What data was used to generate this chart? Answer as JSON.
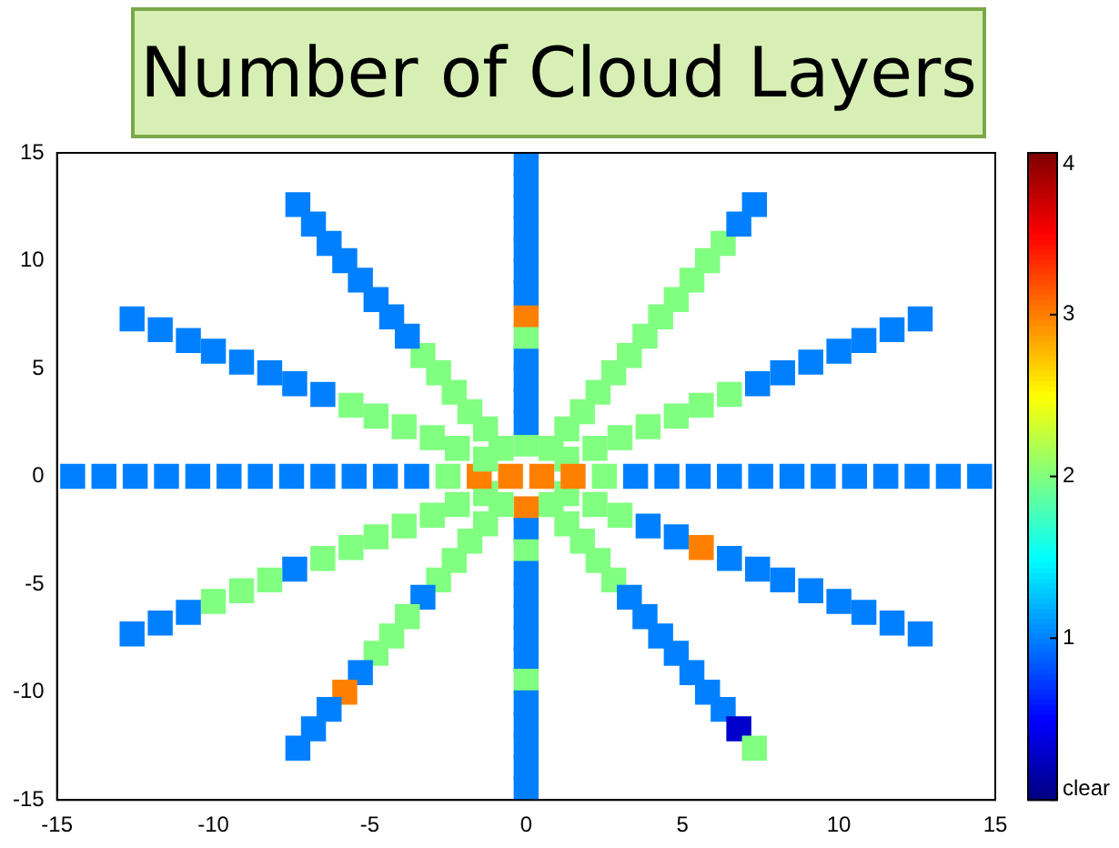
{
  "chart_data": {
    "type": "scatter",
    "title": "Number of Cloud Layers",
    "xlim": [
      -15,
      15
    ],
    "xticks": [
      -15,
      -10,
      -5,
      0,
      5,
      10,
      15
    ],
    "ylim": [
      -15,
      15
    ],
    "yticks": [
      -15,
      -10,
      -5,
      0,
      5,
      10,
      15
    ],
    "clim": [
      0,
      4
    ],
    "cticks": [
      {
        "value": 0,
        "label": "clear"
      },
      1,
      2,
      3,
      4
    ],
    "grid": false,
    "legend": false,
    "marker": "square",
    "series": [
      {
        "x": [
          0.5,
          1.5,
          2.5,
          3.5,
          4.5,
          5.5,
          6.5,
          7.5,
          8.5,
          9.5,
          10.5,
          11.5,
          12.5,
          13.5,
          14.5
        ],
        "values": [
          0,
          0,
          0,
          0,
          0,
          0,
          0,
          0,
          0,
          0,
          0,
          0,
          0,
          0,
          0
        ],
        "cvalues": [
          3,
          3,
          2,
          1,
          1,
          1,
          1,
          1,
          1,
          1,
          1,
          1,
          1,
          1,
          1
        ],
        "colors": [
          "#ff8000",
          "#ff8000",
          "#80ff80",
          "#0080ff",
          "#0080ff",
          "#0080ff",
          "#0080ff",
          "#0080ff",
          "#0080ff",
          "#0080ff",
          "#0080ff",
          "#0080ff",
          "#0080ff",
          "#0080ff",
          "#0080ff"
        ]
      },
      {
        "x": [
          1.3,
          2.2,
          3.0,
          3.9,
          4.8,
          5.6,
          6.5,
          7.4,
          8.2,
          9.1,
          10.0,
          10.8,
          11.7,
          12.6
        ],
        "values": [
          0.8,
          1.3,
          1.8,
          2.3,
          2.8,
          3.3,
          3.8,
          4.3,
          4.8,
          5.3,
          5.8,
          6.3,
          6.8,
          7.3
        ],
        "cvalues": [
          2,
          2,
          2,
          2,
          2,
          2,
          2,
          1,
          1,
          1,
          1,
          1,
          1,
          1
        ],
        "colors": [
          "#80ff80",
          "#80ff80",
          "#80ff80",
          "#80ff80",
          "#80ff80",
          "#80ff80",
          "#80ff80",
          "#0080ff",
          "#0080ff",
          "#0080ff",
          "#0080ff",
          "#0080ff",
          "#0080ff",
          "#0080ff"
        ]
      },
      {
        "x": [
          0.8,
          1.3,
          1.8,
          2.3,
          2.8,
          3.3,
          3.8,
          4.3,
          4.8,
          5.3,
          5.8,
          6.3,
          6.8,
          7.3
        ],
        "values": [
          1.3,
          2.2,
          3.0,
          3.9,
          4.8,
          5.6,
          6.5,
          7.4,
          8.2,
          9.1,
          10.0,
          10.8,
          11.7,
          12.6
        ],
        "cvalues": [
          2,
          2,
          2,
          2,
          2,
          2,
          2,
          2,
          2,
          2,
          2,
          2,
          1,
          1
        ],
        "colors": [
          "#80ff80",
          "#80ff80",
          "#80ff80",
          "#80ff80",
          "#80ff80",
          "#80ff80",
          "#80ff80",
          "#80ff80",
          "#80ff80",
          "#80ff80",
          "#80ff80",
          "#80ff80",
          "#0080ff",
          "#0080ff"
        ]
      },
      {
        "x": [
          0,
          0,
          0,
          0,
          0,
          0,
          0,
          0,
          0,
          0,
          0,
          0,
          0,
          0
        ],
        "values": [
          1.5,
          2.5,
          3.5,
          4.5,
          5.5,
          6.5,
          7.5,
          8.5,
          9.5,
          10.5,
          11.5,
          12.5,
          13.5,
          14.5
        ],
        "cvalues": [
          2,
          1,
          1,
          1,
          1,
          2,
          3,
          1,
          1,
          1,
          1,
          1,
          1,
          1
        ],
        "colors": [
          "#80ff80",
          "#0080ff",
          "#0080ff",
          "#0080ff",
          "#0080ff",
          "#80ff80",
          "#ff8000",
          "#0080ff",
          "#0080ff",
          "#0080ff",
          "#0080ff",
          "#0080ff",
          "#0080ff",
          "#0080ff"
        ]
      },
      {
        "x": [
          -0.8,
          -1.3,
          -1.8,
          -2.3,
          -2.8,
          -3.3,
          -3.8,
          -4.3,
          -4.8,
          -5.3,
          -5.8,
          -6.3,
          -6.8,
          -7.3
        ],
        "values": [
          1.3,
          2.2,
          3.0,
          3.9,
          4.8,
          5.6,
          6.5,
          7.4,
          8.2,
          9.1,
          10.0,
          10.8,
          11.7,
          12.6
        ],
        "cvalues": [
          2,
          2,
          2,
          2,
          2,
          2,
          1,
          1,
          1,
          1,
          1,
          1,
          1,
          1
        ],
        "colors": [
          "#80ff80",
          "#80ff80",
          "#80ff80",
          "#80ff80",
          "#80ff80",
          "#80ff80",
          "#0080ff",
          "#0080ff",
          "#0080ff",
          "#0080ff",
          "#0080ff",
          "#0080ff",
          "#0080ff",
          "#0080ff"
        ]
      },
      {
        "x": [
          -1.3,
          -2.2,
          -3.0,
          -3.9,
          -4.8,
          -5.6,
          -6.5,
          -7.4,
          -8.2,
          -9.1,
          -10.0,
          -10.8,
          -11.7,
          -12.6
        ],
        "values": [
          0.8,
          1.3,
          1.8,
          2.3,
          2.8,
          3.3,
          3.8,
          4.3,
          4.8,
          5.3,
          5.8,
          6.3,
          6.8,
          7.3
        ],
        "cvalues": [
          2,
          2,
          2,
          2,
          2,
          2,
          1,
          1,
          1,
          1,
          1,
          1,
          1,
          1
        ],
        "colors": [
          "#80ff80",
          "#80ff80",
          "#80ff80",
          "#80ff80",
          "#80ff80",
          "#80ff80",
          "#0080ff",
          "#0080ff",
          "#0080ff",
          "#0080ff",
          "#0080ff",
          "#0080ff",
          "#0080ff",
          "#0080ff"
        ]
      },
      {
        "x": [
          -0.5,
          -1.5,
          -2.5,
          -3.5,
          -4.5,
          -5.5,
          -6.5,
          -7.5,
          -8.5,
          -9.5,
          -10.5,
          -11.5,
          -12.5,
          -13.5,
          -14.5
        ],
        "values": [
          0,
          0,
          0,
          0,
          0,
          0,
          0,
          0,
          0,
          0,
          0,
          0,
          0,
          0,
          0
        ],
        "cvalues": [
          3,
          3,
          2,
          1,
          1,
          1,
          1,
          1,
          1,
          1,
          1,
          1,
          1,
          1,
          1
        ],
        "colors": [
          "#ff8000",
          "#ff8000",
          "#80ff80",
          "#0080ff",
          "#0080ff",
          "#0080ff",
          "#0080ff",
          "#0080ff",
          "#0080ff",
          "#0080ff",
          "#0080ff",
          "#0080ff",
          "#0080ff",
          "#0080ff",
          "#0080ff"
        ]
      },
      {
        "x": [
          -1.3,
          -2.2,
          -3.0,
          -3.9,
          -4.8,
          -5.6,
          -6.5,
          -7.4,
          -8.2,
          -9.1,
          -10.0,
          -10.8,
          -11.7,
          -12.6
        ],
        "values": [
          -0.8,
          -1.3,
          -1.8,
          -2.3,
          -2.8,
          -3.3,
          -3.8,
          -4.3,
          -4.8,
          -5.3,
          -5.8,
          -6.3,
          -6.8,
          -7.3
        ],
        "cvalues": [
          2,
          2,
          2,
          2,
          2,
          2,
          2,
          1,
          2,
          2,
          2,
          1,
          1,
          1
        ],
        "colors": [
          "#80ff80",
          "#80ff80",
          "#80ff80",
          "#80ff80",
          "#80ff80",
          "#80ff80",
          "#80ff80",
          "#0080ff",
          "#80ff80",
          "#80ff80",
          "#80ff80",
          "#0080ff",
          "#0080ff",
          "#0080ff"
        ]
      },
      {
        "x": [
          -0.8,
          -1.3,
          -1.8,
          -2.3,
          -2.8,
          -3.3,
          -3.8,
          -4.3,
          -4.8,
          -5.3,
          -5.8,
          -6.3,
          -6.8,
          -7.3
        ],
        "values": [
          -1.3,
          -2.2,
          -3.0,
          -3.9,
          -4.8,
          -5.6,
          -6.5,
          -7.4,
          -8.2,
          -9.1,
          -10.0,
          -10.8,
          -11.7,
          -12.6
        ],
        "cvalues": [
          2,
          2,
          2,
          2,
          2,
          1,
          2,
          2,
          2,
          1,
          3,
          1,
          1,
          1
        ],
        "colors": [
          "#80ff80",
          "#80ff80",
          "#80ff80",
          "#80ff80",
          "#80ff80",
          "#0080ff",
          "#80ff80",
          "#80ff80",
          "#80ff80",
          "#0080ff",
          "#ff8000",
          "#0080ff",
          "#0080ff",
          "#0080ff"
        ]
      },
      {
        "x": [
          0,
          0,
          0,
          0,
          0,
          0,
          0,
          0,
          0,
          0,
          0,
          0,
          0,
          0
        ],
        "values": [
          -1.5,
          -2.5,
          -3.5,
          -4.5,
          -5.5,
          -6.5,
          -7.5,
          -8.5,
          -9.5,
          -10.5,
          -11.5,
          -12.5,
          -13.5,
          -14.5
        ],
        "cvalues": [
          3,
          1,
          2,
          1,
          1,
          1,
          1,
          1,
          2,
          1,
          1,
          1,
          1,
          1
        ],
        "colors": [
          "#ff8000",
          "#0080ff",
          "#80ff80",
          "#0080ff",
          "#0080ff",
          "#0080ff",
          "#0080ff",
          "#0080ff",
          "#80ff80",
          "#0080ff",
          "#0080ff",
          "#0080ff",
          "#0080ff",
          "#0080ff"
        ]
      },
      {
        "x": [
          0.8,
          1.3,
          1.8,
          2.3,
          2.8,
          3.3,
          3.8,
          4.3,
          4.8,
          5.3,
          5.8,
          6.3,
          6.8,
          7.3
        ],
        "values": [
          -1.3,
          -2.2,
          -3.0,
          -3.9,
          -4.8,
          -5.6,
          -6.5,
          -7.4,
          -8.2,
          -9.1,
          -10.0,
          -10.8,
          -11.7,
          -12.6
        ],
        "cvalues": [
          2,
          2,
          2,
          2,
          2,
          1,
          1,
          1,
          1,
          1,
          1,
          1,
          0.3,
          2
        ],
        "colors": [
          "#80ff80",
          "#80ff80",
          "#80ff80",
          "#80ff80",
          "#80ff80",
          "#0080ff",
          "#0080ff",
          "#0080ff",
          "#0080ff",
          "#0080ff",
          "#0080ff",
          "#0080ff",
          "#0000cc",
          "#80ff80"
        ]
      },
      {
        "x": [
          1.3,
          2.2,
          3.0,
          3.9,
          4.8,
          5.6,
          6.5,
          7.4,
          8.2,
          9.1,
          10.0,
          10.8,
          11.7,
          12.6
        ],
        "values": [
          -0.8,
          -1.3,
          -1.8,
          -2.3,
          -2.8,
          -3.3,
          -3.8,
          -4.3,
          -4.8,
          -5.3,
          -5.8,
          -6.3,
          -6.8,
          -7.3
        ],
        "cvalues": [
          2,
          2,
          2,
          1,
          1,
          3,
          1,
          1,
          1,
          1,
          1,
          1,
          1,
          1
        ],
        "colors": [
          "#80ff80",
          "#80ff80",
          "#80ff80",
          "#0080ff",
          "#0080ff",
          "#ff8000",
          "#0080ff",
          "#0080ff",
          "#0080ff",
          "#0080ff",
          "#0080ff",
          "#0080ff",
          "#0080ff",
          "#0080ff"
        ]
      }
    ]
  }
}
